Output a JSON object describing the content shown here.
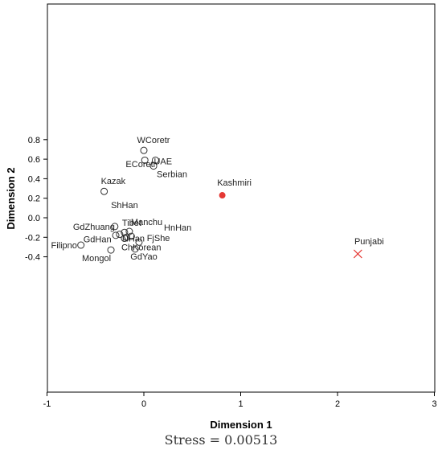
{
  "chart_data": {
    "type": "scatter",
    "xlabel": "Dimension 1",
    "ylabel": "Dimension 2",
    "xlim": [
      -1,
      3
    ],
    "x_ticks": [
      -1,
      0,
      1,
      2,
      3
    ],
    "y_ticks": [
      0.8,
      0.6,
      0.4,
      0.2,
      0.0,
      -0.2,
      -0.4
    ],
    "y_tick_labels": [
      "0.8",
      "0.6",
      "0.4",
      "0.2",
      "0.0",
      "-0.2",
      "-0.4"
    ],
    "grid": false,
    "highlight_colors": {
      "outlier": "#e53935",
      "default": "#333333"
    },
    "points": [
      {
        "label": "WCoretr",
        "x": 0.0,
        "y": 0.69,
        "marker": "circle"
      },
      {
        "label": "UAE",
        "x": 0.12,
        "y": 0.59,
        "marker": "circle"
      },
      {
        "label": "",
        "x": 0.01,
        "y": 0.59,
        "marker": "circle"
      },
      {
        "label": "ECoretr",
        "x": -0.03,
        "y": 0.52,
        "marker": "none"
      },
      {
        "label": "Serbian",
        "x": 0.1,
        "y": 0.53,
        "marker": "circle"
      },
      {
        "label": "Kazak",
        "x": -0.41,
        "y": 0.27,
        "marker": "circle"
      },
      {
        "label": "Kashmiri",
        "x": 0.81,
        "y": 0.23,
        "marker": "filled-circle"
      },
      {
        "label": "ShHan",
        "x": -0.2,
        "y": 0.1,
        "marker": "none"
      },
      {
        "label": "Tibet",
        "x": -0.2,
        "y": -0.15,
        "marker": "circle"
      },
      {
        "label": "Manchu",
        "x": -0.15,
        "y": -0.14,
        "marker": "circle"
      },
      {
        "label": "GdZhuang",
        "x": -0.3,
        "y": -0.09,
        "marker": "circle"
      },
      {
        "label": "HnHan",
        "x": 0.35,
        "y": -0.13,
        "marker": "none"
      },
      {
        "label": "",
        "x": -0.25,
        "y": -0.17,
        "marker": "circle"
      },
      {
        "label": "",
        "x": -0.18,
        "y": -0.2,
        "marker": "circle"
      },
      {
        "label": "",
        "x": -0.13,
        "y": -0.19,
        "marker": "circle"
      },
      {
        "label": "",
        "x": -0.29,
        "y": -0.18,
        "marker": "circle"
      },
      {
        "label": "NHan",
        "x": -0.2,
        "y": -0.21,
        "marker": "circle"
      },
      {
        "label": "FjShe",
        "x": 0.15,
        "y": -0.24,
        "marker": "none"
      },
      {
        "label": "Filipno",
        "x": -0.65,
        "y": -0.28,
        "marker": "circle"
      },
      {
        "label": "GdHan",
        "x": -0.48,
        "y": -0.25,
        "marker": "none"
      },
      {
        "label": "ChKorean",
        "x": -0.05,
        "y": -0.25,
        "marker": "circle"
      },
      {
        "label": "",
        "x": -0.09,
        "y": -0.32,
        "marker": "circle"
      },
      {
        "label": "Mongol",
        "x": -0.34,
        "y": -0.33,
        "marker": "circle"
      },
      {
        "label": "GdYao",
        "x": 0.0,
        "y": -0.43,
        "marker": "none"
      },
      {
        "label": "Punjabi",
        "x": 2.21,
        "y": -0.37,
        "marker": "cross"
      }
    ],
    "caption": "Stress = 0.00513"
  }
}
